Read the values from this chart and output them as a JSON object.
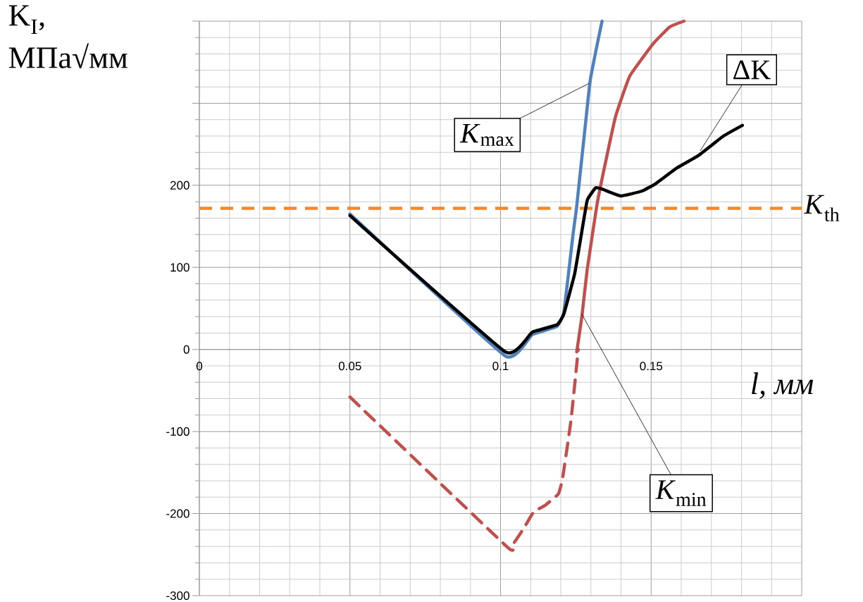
{
  "chart_data": {
    "type": "line",
    "ylabel": "K$_{I}$, МПа√мм",
    "xlabel": "l, мм",
    "xlim": [
      0,
      0.2
    ],
    "ylim": [
      -300,
      400
    ],
    "xticks": [
      0,
      0.05,
      0.1,
      0.15,
      {
        "value": 0.2,
        "label": null
      }
    ],
    "yticks": [
      -300,
      -200,
      -100,
      0,
      100,
      200,
      {
        "value": 300,
        "label": null
      },
      {
        "value": 400,
        "label": null
      }
    ],
    "grid": true,
    "series": [
      {
        "color": "#4f81bd",
        "x": [
          0.05,
          0.1016,
          0.1105,
          0.1187,
          0.121,
          0.1241,
          0.1253,
          0.1293,
          0.13,
          0.132,
          0.1337
        ],
        "values": [
          165,
          -8,
          18,
          28,
          45,
          141,
          175,
          313,
          333,
          370,
          400
        ]
      },
      {
        "color": "#c0504d",
        "x": [
          0.1253,
          0.127,
          0.1288,
          0.132,
          0.1344,
          0.1382,
          0.1429,
          0.1508,
          0.1562,
          0.1609
        ],
        "values": [
          -3,
          40,
          98,
          176,
          220,
          284,
          333,
          373,
          393,
          400
        ]
      },
      {
        "color": "#c0504d",
        "line_style": "dashed",
        "x": [
          0.05,
          0.1023,
          0.1042,
          0.1077,
          0.111,
          0.1148,
          0.1192,
          0.1206,
          0.1234,
          0.1258
        ],
        "values": [
          -58,
          -241,
          -237,
          -218,
          -198,
          -190,
          -176,
          -157,
          -86,
          0
        ]
      },
      {
        "color": "#000000",
        "x": [
          0.05,
          0.1016,
          0.1105,
          0.1187,
          0.121,
          0.1246,
          0.127,
          0.1288,
          0.1316,
          0.134,
          0.14,
          0.147,
          0.1515,
          0.1585,
          0.1656,
          0.174,
          0.1803
        ],
        "values": [
          163,
          -3,
          21,
          30,
          43,
          92,
          144,
          182,
          197,
          195,
          187,
          193,
          202,
          221,
          236,
          260,
          273
        ]
      }
    ],
    "ref_lines": [
      {
        "axis": "y",
        "value": 172,
        "label": "*K*$_{th}$",
        "color": "#f6882a",
        "line_style": "dashed"
      }
    ],
    "annotations": [
      {
        "text": "*K*$_{max}$",
        "x": 0.1293,
        "y": 324
      },
      {
        "text": "*K*$_{min}$",
        "x": 0.127,
        "y": 43
      },
      {
        "text": "ΔK",
        "x": 0.1663,
        "y": 242
      }
    ]
  }
}
